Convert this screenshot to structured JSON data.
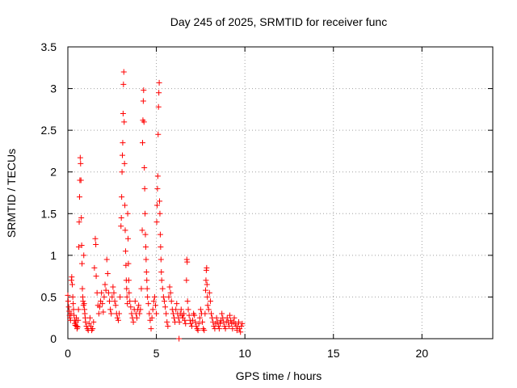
{
  "chart_data": {
    "type": "scatter",
    "title": "Day 245 of 2025, SRMTID for receiver func",
    "xlabel": "GPS time / hours",
    "ylabel": "SRMTID / TECUs",
    "xlim": [
      0,
      24
    ],
    "ylim": [
      0,
      3.5
    ],
    "xticks": [
      0,
      5,
      10,
      15,
      20
    ],
    "yticks": [
      0,
      0.5,
      1,
      1.5,
      2,
      2.5,
      3,
      3.5
    ],
    "xtick_labels": [
      "0",
      "5",
      "10",
      "15",
      "20"
    ],
    "ytick_labels": [
      "0",
      "0.5",
      "1",
      "1.5",
      "2",
      "2.5",
      "3",
      "3.5"
    ],
    "grid": true,
    "marker": "+",
    "color": "#ff0000",
    "series": [
      {
        "name": "SRMTID",
        "points": [
          [
            0.0,
            0.52
          ],
          [
            0.02,
            0.45
          ],
          [
            0.05,
            0.38
          ],
          [
            0.08,
            0.33
          ],
          [
            0.1,
            0.28
          ],
          [
            0.12,
            0.25
          ],
          [
            0.15,
            0.22
          ],
          [
            0.18,
            0.3
          ],
          [
            0.2,
            0.7
          ],
          [
            0.22,
            0.74
          ],
          [
            0.25,
            0.65
          ],
          [
            0.28,
            0.5
          ],
          [
            0.3,
            0.42
          ],
          [
            0.32,
            0.35
          ],
          [
            0.35,
            0.28
          ],
          [
            0.38,
            0.22
          ],
          [
            0.4,
            0.18
          ],
          [
            0.42,
            0.16
          ],
          [
            0.45,
            0.2
          ],
          [
            0.48,
            0.25
          ],
          [
            0.5,
            0.15
          ],
          [
            0.52,
            0.12
          ],
          [
            0.55,
            0.14
          ],
          [
            0.58,
            0.22
          ],
          [
            0.6,
            0.35
          ],
          [
            0.62,
            1.1
          ],
          [
            0.64,
            1.4
          ],
          [
            0.66,
            1.7
          ],
          [
            0.68,
            1.9
          ],
          [
            0.7,
            2.17
          ],
          [
            0.72,
            2.1
          ],
          [
            0.74,
            1.9
          ],
          [
            0.76,
            1.45
          ],
          [
            0.78,
            1.12
          ],
          [
            0.8,
            0.9
          ],
          [
            0.82,
            0.6
          ],
          [
            0.84,
            0.5
          ],
          [
            0.86,
            0.45
          ],
          [
            0.88,
            0.4
          ],
          [
            0.9,
            1.0
          ],
          [
            0.92,
            0.42
          ],
          [
            0.94,
            0.35
          ],
          [
            0.96,
            0.3
          ],
          [
            0.98,
            0.25
          ],
          [
            1.0,
            0.2
          ],
          [
            1.05,
            0.15
          ],
          [
            1.1,
            0.12
          ],
          [
            1.15,
            0.1
          ],
          [
            1.2,
            0.18
          ],
          [
            1.25,
            0.25
          ],
          [
            1.3,
            0.15
          ],
          [
            1.35,
            0.1
          ],
          [
            1.4,
            0.12
          ],
          [
            1.45,
            0.2
          ],
          [
            1.5,
            0.85
          ],
          [
            1.55,
            1.2
          ],
          [
            1.58,
            1.13
          ],
          [
            1.6,
            0.75
          ],
          [
            1.65,
            0.55
          ],
          [
            1.7,
            0.4
          ],
          [
            1.75,
            0.3
          ],
          [
            1.8,
            0.38
          ],
          [
            1.85,
            0.45
          ],
          [
            1.9,
            0.55
          ],
          [
            1.95,
            0.42
          ],
          [
            2.0,
            0.32
          ],
          [
            2.05,
            0.5
          ],
          [
            2.1,
            0.65
          ],
          [
            2.15,
            0.58
          ],
          [
            2.2,
            0.95
          ],
          [
            2.25,
            0.78
          ],
          [
            2.3,
            0.55
          ],
          [
            2.35,
            0.45
          ],
          [
            2.4,
            0.35
          ],
          [
            2.45,
            0.3
          ],
          [
            2.5,
            0.5
          ],
          [
            2.55,
            0.62
          ],
          [
            2.6,
            0.55
          ],
          [
            2.65,
            0.45
          ],
          [
            2.7,
            0.4
          ],
          [
            2.75,
            0.3
          ],
          [
            2.8,
            0.25
          ],
          [
            2.85,
            0.22
          ],
          [
            2.9,
            0.3
          ],
          [
            2.95,
            0.5
          ],
          [
            3.0,
            1.35
          ],
          [
            3.02,
            1.45
          ],
          [
            3.04,
            1.7
          ],
          [
            3.06,
            2.0
          ],
          [
            3.08,
            2.2
          ],
          [
            3.1,
            2.35
          ],
          [
            3.12,
            2.7
          ],
          [
            3.14,
            3.05
          ],
          [
            3.16,
            3.2
          ],
          [
            3.18,
            2.6
          ],
          [
            3.2,
            2.1
          ],
          [
            3.22,
            1.6
          ],
          [
            3.24,
            1.3
          ],
          [
            3.26,
            1.05
          ],
          [
            3.28,
            0.88
          ],
          [
            3.3,
            0.7
          ],
          [
            3.32,
            0.6
          ],
          [
            3.34,
            0.5
          ],
          [
            3.36,
            0.42
          ],
          [
            3.38,
            1.5
          ],
          [
            3.4,
            1.2
          ],
          [
            3.42,
            0.9
          ],
          [
            3.44,
            0.7
          ],
          [
            3.46,
            0.55
          ],
          [
            3.5,
            0.45
          ],
          [
            3.55,
            0.38
          ],
          [
            3.6,
            0.3
          ],
          [
            3.65,
            0.25
          ],
          [
            3.7,
            0.2
          ],
          [
            3.75,
            0.35
          ],
          [
            3.8,
            0.45
          ],
          [
            3.85,
            0.3
          ],
          [
            3.9,
            0.25
          ],
          [
            3.95,
            0.35
          ],
          [
            4.0,
            0.4
          ],
          [
            4.05,
            0.3
          ],
          [
            4.1,
            0.35
          ],
          [
            4.15,
            0.6
          ],
          [
            4.2,
            1.3
          ],
          [
            4.22,
            2.35
          ],
          [
            4.24,
            2.62
          ],
          [
            4.26,
            2.85
          ],
          [
            4.28,
            2.98
          ],
          [
            4.3,
            2.6
          ],
          [
            4.32,
            2.05
          ],
          [
            4.34,
            1.8
          ],
          [
            4.36,
            1.5
          ],
          [
            4.38,
            1.25
          ],
          [
            4.4,
            1.1
          ],
          [
            4.42,
            0.95
          ],
          [
            4.44,
            0.8
          ],
          [
            4.46,
            0.7
          ],
          [
            4.48,
            0.6
          ],
          [
            4.5,
            0.5
          ],
          [
            4.55,
            0.42
          ],
          [
            4.6,
            0.3
          ],
          [
            4.65,
            0.22
          ],
          [
            4.7,
            0.12
          ],
          [
            4.75,
            0.25
          ],
          [
            4.8,
            0.35
          ],
          [
            4.85,
            0.45
          ],
          [
            4.9,
            0.5
          ],
          [
            4.95,
            0.4
          ],
          [
            5.0,
            0.3
          ],
          [
            5.02,
            1.4
          ],
          [
            5.04,
            1.6
          ],
          [
            5.06,
            1.8
          ],
          [
            5.08,
            1.95
          ],
          [
            5.1,
            2.45
          ],
          [
            5.12,
            2.78
          ],
          [
            5.14,
            2.95
          ],
          [
            5.16,
            3.07
          ],
          [
            5.18,
            1.65
          ],
          [
            5.2,
            1.5
          ],
          [
            5.22,
            1.25
          ],
          [
            5.24,
            1.1
          ],
          [
            5.26,
            0.95
          ],
          [
            5.28,
            0.8
          ],
          [
            5.3,
            0.7
          ],
          [
            5.35,
            0.6
          ],
          [
            5.4,
            0.5
          ],
          [
            5.45,
            0.45
          ],
          [
            5.5,
            0.38
          ],
          [
            5.55,
            0.3
          ],
          [
            5.6,
            0.2
          ],
          [
            5.65,
            0.15
          ],
          [
            5.7,
            0.5
          ],
          [
            5.75,
            0.62
          ],
          [
            5.8,
            0.55
          ],
          [
            5.85,
            0.45
          ],
          [
            5.9,
            0.35
          ],
          [
            5.95,
            0.3
          ],
          [
            6.0,
            0.25
          ],
          [
            6.05,
            0.2
          ],
          [
            6.1,
            0.35
          ],
          [
            6.15,
            0.42
          ],
          [
            6.2,
            0.3
          ],
          [
            6.25,
            0.25
          ],
          [
            6.28,
            0.0
          ],
          [
            6.3,
            0.2
          ],
          [
            6.35,
            0.3
          ],
          [
            6.4,
            0.35
          ],
          [
            6.45,
            0.28
          ],
          [
            6.5,
            0.25
          ],
          [
            6.55,
            0.3
          ],
          [
            6.6,
            0.22
          ],
          [
            6.65,
            0.18
          ],
          [
            6.7,
            0.7
          ],
          [
            6.72,
            0.95
          ],
          [
            6.74,
            0.92
          ],
          [
            6.76,
            0.45
          ],
          [
            6.8,
            0.35
          ],
          [
            6.85,
            0.28
          ],
          [
            6.9,
            0.22
          ],
          [
            6.95,
            0.18
          ],
          [
            7.0,
            0.15
          ],
          [
            7.05,
            0.22
          ],
          [
            7.1,
            0.3
          ],
          [
            7.15,
            0.28
          ],
          [
            7.2,
            0.2
          ],
          [
            7.25,
            0.15
          ],
          [
            7.3,
            0.12
          ],
          [
            7.35,
            0.1
          ],
          [
            7.4,
            0.18
          ],
          [
            7.45,
            0.25
          ],
          [
            7.5,
            0.35
          ],
          [
            7.55,
            0.3
          ],
          [
            7.6,
            0.2
          ],
          [
            7.65,
            0.12
          ],
          [
            7.7,
            0.1
          ],
          [
            7.75,
            0.3
          ],
          [
            7.78,
            0.58
          ],
          [
            7.8,
            0.7
          ],
          [
            7.82,
            0.82
          ],
          [
            7.84,
            0.85
          ],
          [
            7.86,
            0.65
          ],
          [
            7.88,
            0.5
          ],
          [
            7.9,
            0.4
          ],
          [
            7.95,
            0.35
          ],
          [
            8.0,
            0.55
          ],
          [
            8.05,
            0.45
          ],
          [
            8.1,
            0.3
          ],
          [
            8.15,
            0.25
          ],
          [
            8.2,
            0.2
          ],
          [
            8.25,
            0.15
          ],
          [
            8.3,
            0.12
          ],
          [
            8.35,
            0.18
          ],
          [
            8.4,
            0.25
          ],
          [
            8.45,
            0.2
          ],
          [
            8.5,
            0.15
          ],
          [
            8.55,
            0.12
          ],
          [
            8.6,
            0.18
          ],
          [
            8.65,
            0.22
          ],
          [
            8.7,
            0.3
          ],
          [
            8.75,
            0.25
          ],
          [
            8.8,
            0.2
          ],
          [
            8.85,
            0.15
          ],
          [
            8.9,
            0.12
          ],
          [
            8.95,
            0.2
          ],
          [
            9.0,
            0.25
          ],
          [
            9.05,
            0.2
          ],
          [
            9.1,
            0.15
          ],
          [
            9.15,
            0.28
          ],
          [
            9.2,
            0.22
          ],
          [
            9.25,
            0.18
          ],
          [
            9.3,
            0.12
          ],
          [
            9.35,
            0.2
          ],
          [
            9.4,
            0.25
          ],
          [
            9.45,
            0.18
          ],
          [
            9.5,
            0.15
          ],
          [
            9.55,
            0.1
          ],
          [
            9.6,
            0.15
          ],
          [
            9.65,
            0.2
          ],
          [
            9.7,
            0.12
          ],
          [
            9.75,
            0.08
          ],
          [
            9.8,
            0.15
          ],
          [
            9.85,
            0.18
          ]
        ]
      }
    ]
  }
}
